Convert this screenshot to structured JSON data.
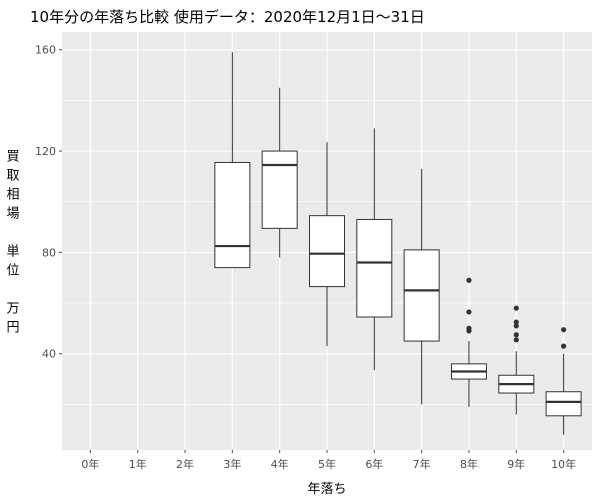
{
  "chart_data": {
    "type": "box",
    "title": "10年分の年落ち比較 使用データ：2020年12月1日～31日",
    "xlabel": "年落ち",
    "ylabel": "買取相場 単位 万円",
    "ylabel_lines": [
      "買",
      "取",
      "相",
      "場",
      "",
      "単",
      "位",
      "",
      "万",
      "円"
    ],
    "categories": [
      "0年",
      "1年",
      "2年",
      "3年",
      "4年",
      "5年",
      "6年",
      "7年",
      "8年",
      "9年",
      "10年"
    ],
    "ylim": [
      2,
      167
    ],
    "yticks": [
      40,
      80,
      120,
      160
    ],
    "grid": true,
    "boxes": [
      {
        "category": "3年",
        "min": 74,
        "q1": 74,
        "median": 82.5,
        "q3": 115.5,
        "max": 159,
        "outliers": []
      },
      {
        "category": "4年",
        "min": 78,
        "q1": 89.5,
        "median": 114.5,
        "q3": 120,
        "max": 145,
        "outliers": []
      },
      {
        "category": "5年",
        "min": 43,
        "q1": 66.5,
        "median": 79.5,
        "q3": 94.5,
        "max": 123.5,
        "outliers": []
      },
      {
        "category": "6年",
        "min": 33.5,
        "q1": 54.5,
        "median": 76,
        "q3": 93,
        "max": 129,
        "outliers": []
      },
      {
        "category": "7年",
        "min": 20,
        "q1": 45,
        "median": 65,
        "q3": 81,
        "max": 113,
        "outliers": []
      },
      {
        "category": "8年",
        "min": 19,
        "q1": 30,
        "median": 33,
        "q3": 36,
        "max": 45,
        "outliers": [
          49,
          50,
          56.5,
          69
        ]
      },
      {
        "category": "9年",
        "min": 16,
        "q1": 24.5,
        "median": 28,
        "q3": 31.5,
        "max": 41,
        "outliers": [
          45.5,
          47.5,
          51,
          52.5,
          58
        ]
      },
      {
        "category": "10年",
        "min": 8,
        "q1": 15.5,
        "median": 21,
        "q3": 25,
        "max": 40,
        "outliers": [
          43,
          49.5
        ]
      }
    ]
  }
}
